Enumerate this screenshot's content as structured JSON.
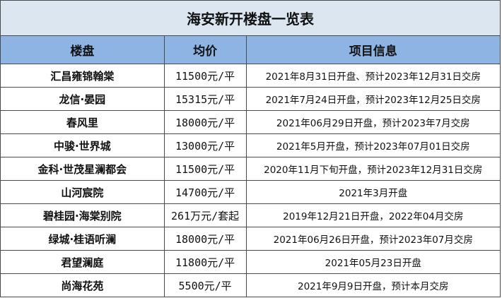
{
  "title": "海安新开楼盘一览表",
  "headers": {
    "name": "楼盘",
    "price": "均价",
    "info": "项目信息"
  },
  "rows": [
    {
      "name": "汇昌雍锦翰棠",
      "price": "11500元/平",
      "info": "2021年8月31日开盘、预计2023年12月31日交房"
    },
    {
      "name": "龙信·晏园",
      "price": "15315元/平",
      "info": "2021年7月24日开盘，预计2023年12月25日交房"
    },
    {
      "name": "春风里",
      "price": "18000元/平",
      "info": "2021年06月29日开盘，预计2023年7月交房"
    },
    {
      "name": "中骏·世界城",
      "price": "13000元/平",
      "info": "2021年5月开盘，预计2023年07月01日交房"
    },
    {
      "name": "金科·世茂星澜都会",
      "price": "11500元/平",
      "info": "2020年11月下旬开盘，预计2023年12月31日交房"
    },
    {
      "name": "山河宸院",
      "price": "14700元/平",
      "info": "2021年3月开盘"
    },
    {
      "name": "碧桂园·海棠别院",
      "price": "261万元/套起",
      "info": "2019年12月21日开盘，2022年04月交房"
    },
    {
      "name": "绿城·桂语听澜",
      "price": "18000元/平",
      "info": "2021年06月26日开盘，预计2023年07月交房"
    },
    {
      "name": "君望澜庭",
      "price": "11800元/平",
      "info": "2021年05月23日开盘"
    },
    {
      "name": "尚海花苑",
      "price": "5500元/平",
      "info": "2021年9月9日开盘，预计本月交房"
    }
  ]
}
